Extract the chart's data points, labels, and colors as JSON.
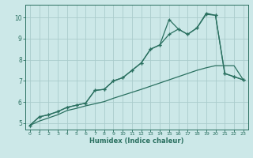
{
  "xlabel": "Humidex (Indice chaleur)",
  "background_color": "#cce8e8",
  "grid_color": "#aacccc",
  "line_color": "#2a7060",
  "xlim": [
    -0.5,
    23.5
  ],
  "ylim": [
    4.7,
    10.6
  ],
  "xticks": [
    0,
    1,
    2,
    3,
    4,
    5,
    6,
    7,
    8,
    9,
    10,
    11,
    12,
    13,
    14,
    15,
    16,
    17,
    18,
    19,
    20,
    21,
    22,
    23
  ],
  "yticks": [
    5,
    6,
    7,
    8,
    9,
    10
  ],
  "line1_x": [
    0,
    1,
    2,
    3,
    4,
    5,
    6,
    7,
    8,
    9,
    10,
    11,
    12,
    13,
    14,
    15,
    16,
    17,
    18,
    19,
    20,
    21,
    22,
    23
  ],
  "line1_y": [
    4.9,
    5.3,
    5.4,
    5.55,
    5.75,
    5.85,
    5.95,
    6.55,
    6.6,
    7.0,
    7.15,
    7.5,
    7.85,
    8.5,
    8.7,
    9.2,
    9.45,
    9.2,
    9.5,
    10.15,
    10.1,
    7.35,
    7.2,
    7.05
  ],
  "line2_x": [
    0,
    1,
    2,
    3,
    4,
    5,
    6,
    7,
    8,
    9,
    10,
    11,
    12,
    13,
    14,
    15,
    16,
    17,
    18,
    19,
    20,
    21,
    22,
    23
  ],
  "line2_y": [
    4.9,
    5.3,
    5.4,
    5.55,
    5.75,
    5.85,
    5.95,
    6.55,
    6.6,
    7.0,
    7.15,
    7.5,
    7.85,
    8.5,
    8.7,
    9.9,
    9.45,
    9.2,
    9.5,
    10.2,
    10.1,
    7.35,
    7.2,
    7.05
  ],
  "line3_x": [
    0,
    1,
    2,
    3,
    4,
    5,
    6,
    7,
    8,
    9,
    10,
    11,
    12,
    13,
    14,
    15,
    16,
    17,
    18,
    19,
    20,
    21,
    22,
    23
  ],
  "line3_y": [
    4.9,
    5.1,
    5.25,
    5.4,
    5.6,
    5.7,
    5.82,
    5.92,
    6.02,
    6.18,
    6.32,
    6.46,
    6.6,
    6.75,
    6.9,
    7.05,
    7.2,
    7.35,
    7.5,
    7.62,
    7.72,
    7.72,
    7.72,
    7.05
  ]
}
